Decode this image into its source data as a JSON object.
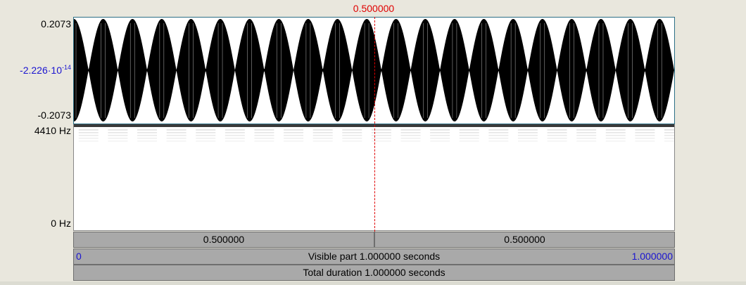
{
  "cursor": {
    "time": "0.500000"
  },
  "waveform": {
    "y_max": "0.2073",
    "y_mid_mantissa": "-2.226·10",
    "y_mid_exponent": "-14",
    "y_min": "-0.2073",
    "color": "#000000",
    "cycles": 20.5
  },
  "spectrogram": {
    "freq_max": "4410 Hz",
    "freq_min": "0 Hz"
  },
  "selection_bar": {
    "left_duration": "0.500000",
    "right_duration": "0.500000"
  },
  "visible_bar": {
    "start": "0",
    "label": "Visible part 1.000000 seconds",
    "end": "1.000000"
  },
  "total_bar": {
    "label": "Total duration 1.000000 seconds"
  },
  "colors": {
    "cursor": "#e00000",
    "axis_blue": "#1a14d0",
    "bar_gray": "#a9a9a9",
    "background": "#e9e7dd"
  }
}
